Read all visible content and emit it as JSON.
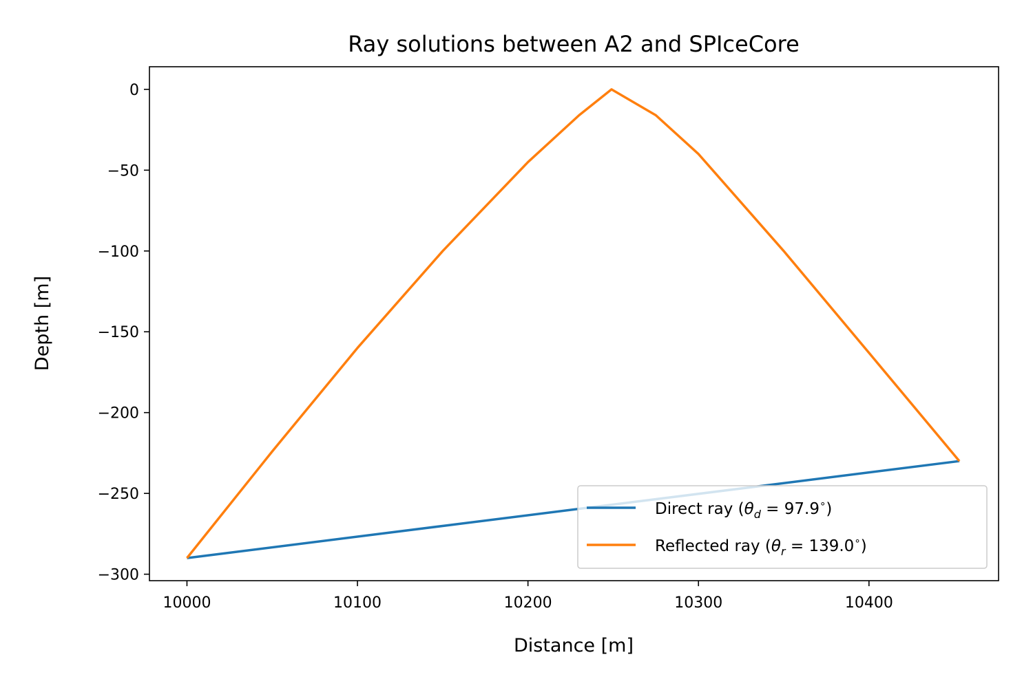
{
  "chart_data": {
    "type": "line",
    "title": "Ray solutions between A2 and SPIceCore",
    "xlabel": "Distance [m]",
    "ylabel": "Depth [m]",
    "xlim": [
      9978,
      10476
    ],
    "ylim": [
      -304,
      14
    ],
    "xticks": [
      10000,
      10100,
      10200,
      10300,
      10400
    ],
    "xtick_labels": [
      "10000",
      "10100",
      "10200",
      "10300",
      "10400"
    ],
    "yticks": [
      0,
      -50,
      -100,
      -150,
      -200,
      -250,
      -300
    ],
    "ytick_labels": [
      "0",
      "−50",
      "−100",
      "−150",
      "−200",
      "−250",
      "−300"
    ],
    "grid": false,
    "legend_position": "lower right",
    "series": [
      {
        "name": "Direct ray",
        "legend_label": "Direct ray (",
        "theta_symbol": "θ",
        "theta_sub": "d",
        "theta_value": " = 97.9",
        "color": "#1f77b4",
        "x": [
          10000,
          10453
        ],
        "y": [
          -290,
          -230
        ]
      },
      {
        "name": "Reflected ray",
        "legend_label": "Reflected ray (",
        "theta_symbol": "θ",
        "theta_sub": "r",
        "theta_value": " = 139.0",
        "color": "#ff7f0e",
        "x": [
          10000,
          10050,
          10100,
          10150,
          10200,
          10230,
          10249,
          10275,
          10300,
          10350,
          10400,
          10453
        ],
        "y": [
          -290,
          -224,
          -160,
          -100,
          -45,
          -16,
          0,
          -16,
          -40,
          -100,
          -163,
          -230
        ]
      }
    ]
  }
}
